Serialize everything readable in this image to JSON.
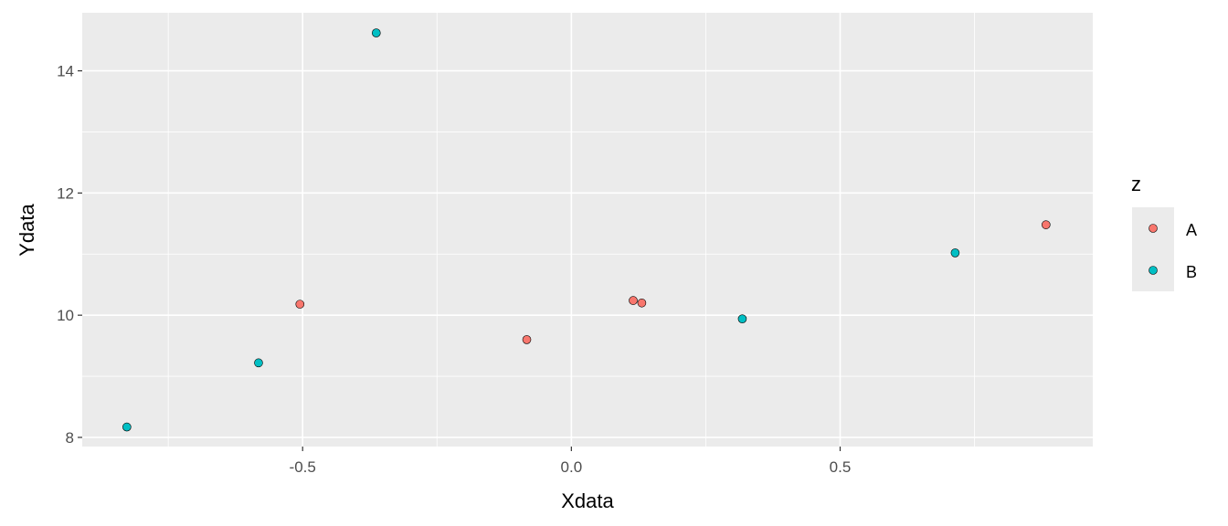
{
  "chart_data": {
    "type": "scatter",
    "title": "",
    "xlabel": "Xdata",
    "ylabel": "Ydata",
    "xlim": [
      -0.91,
      0.97
    ],
    "ylim": [
      7.85,
      14.95
    ],
    "x_ticks": [
      -0.5,
      0.0,
      0.5
    ],
    "x_tick_labels": [
      "-0.5",
      "0.0",
      "0.5"
    ],
    "y_ticks": [
      8,
      10,
      12,
      14
    ],
    "y_tick_labels": [
      "8",
      "10",
      "12",
      "14"
    ],
    "grid": true,
    "legend": {
      "title": "z",
      "position": "right",
      "entries": [
        "A",
        "B"
      ]
    },
    "colors": {
      "A": "#F8766D",
      "B": "#00BFC4",
      "panel": "#EBEBEB",
      "grid": "#FFFFFF"
    },
    "series": [
      {
        "name": "A",
        "points": [
          {
            "x": -0.505,
            "y": 10.18
          },
          {
            "x": -0.083,
            "y": 9.6
          },
          {
            "x": 0.115,
            "y": 10.24
          },
          {
            "x": 0.131,
            "y": 10.2
          },
          {
            "x": 0.883,
            "y": 11.48
          }
        ]
      },
      {
        "name": "B",
        "points": [
          {
            "x": -0.827,
            "y": 8.17
          },
          {
            "x": -0.582,
            "y": 9.22
          },
          {
            "x": -0.363,
            "y": 14.62
          },
          {
            "x": 0.318,
            "y": 9.94
          },
          {
            "x": 0.714,
            "y": 11.02
          }
        ]
      }
    ]
  }
}
